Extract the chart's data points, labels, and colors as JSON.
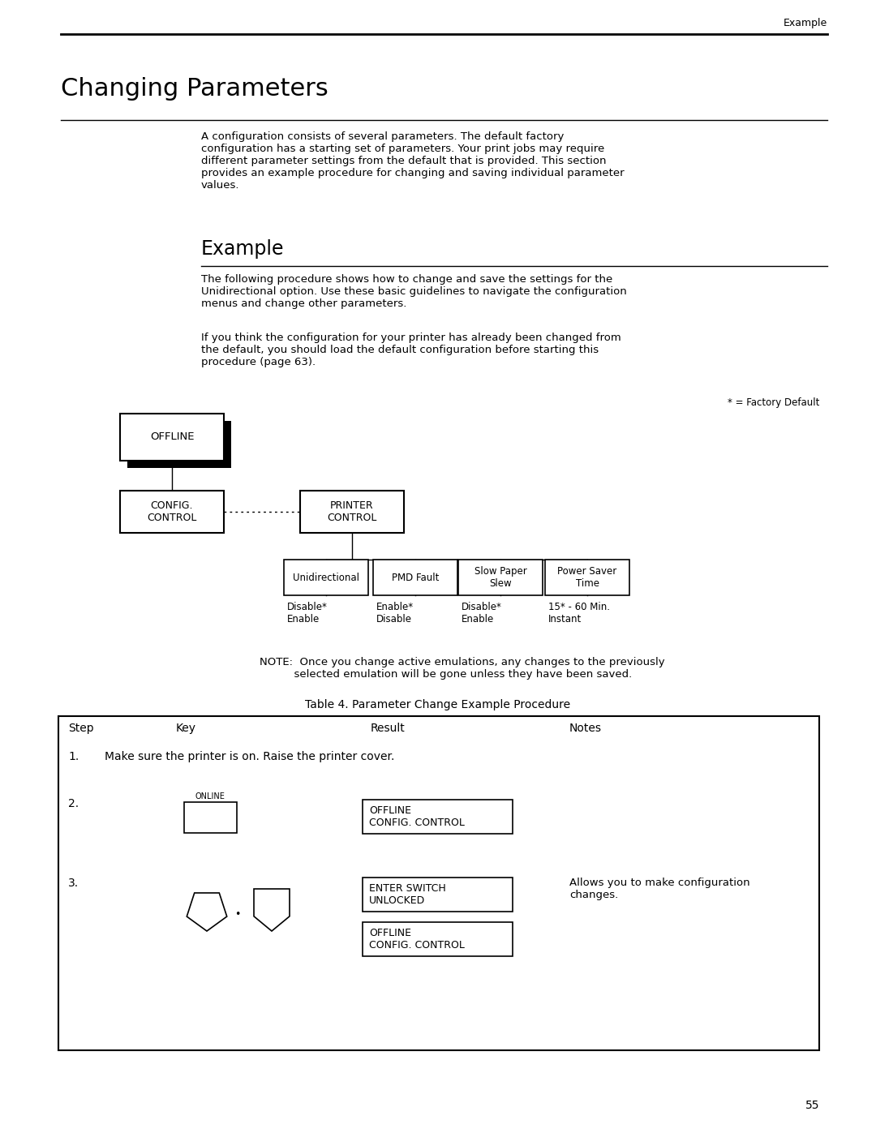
{
  "page_title_right": "Example",
  "section_title": "Changing Parameters",
  "body_text_1": "A configuration consists of several parameters. The default factory\nconfiguration has a starting set of parameters. Your print jobs may require\ndifferent parameter settings from the default that is provided. This section\nprovides an example procedure for changing and saving individual parameter\nvalues.",
  "subsection_title": "Example",
  "body_text_2": "The following procedure shows how to change and save the settings for the\nUnidirectional option. Use these basic guidelines to navigate the configuration\nmenus and change other parameters.",
  "body_text_3": "If you think the configuration for your printer has already been changed from\nthe default, you should load the default configuration before starting this\nprocedure (page 63).",
  "factory_default_note": "* = Factory Default",
  "note_text": "NOTE:  Once you change active emulations, any changes to the previously\n         selected emulation will be gone unless they have been saved.",
  "table_title": "Table 4. Parameter Change Example Procedure",
  "table_headers": [
    "Step",
    "Key",
    "Result",
    "Notes"
  ],
  "page_number": "55",
  "background_color": "#ffffff"
}
